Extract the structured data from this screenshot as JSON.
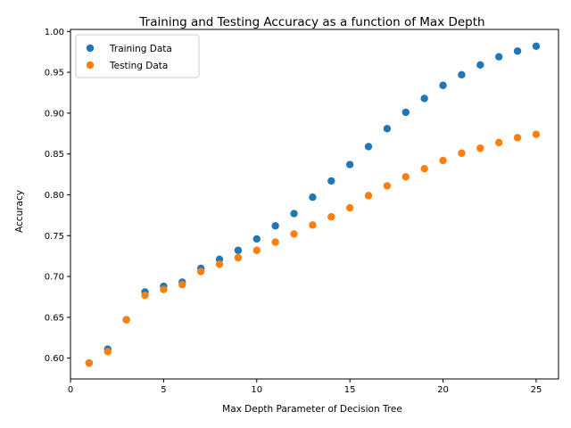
{
  "chart_data": {
    "type": "scatter",
    "title": "Training and Testing Accuracy as a function of Max Depth",
    "xlabel": "Max Depth Parameter of Decision Tree",
    "ylabel": "Accuracy",
    "xlim": [
      0,
      26.2
    ],
    "ylim": [
      0.5745,
      1.0025
    ],
    "xticks": [
      0,
      5,
      10,
      15,
      20,
      25
    ],
    "yticks": [
      0.6,
      0.65,
      0.7,
      0.75,
      0.8,
      0.85,
      0.9,
      0.95,
      1.0
    ],
    "xtick_labels": [
      "0",
      "5",
      "10",
      "15",
      "20",
      "25"
    ],
    "ytick_labels": [
      "0.60",
      "0.65",
      "0.70",
      "0.75",
      "0.80",
      "0.85",
      "0.90",
      "0.95",
      "1.00"
    ],
    "grid": false,
    "legend_position": "top-left",
    "x": [
      1,
      2,
      3,
      4,
      5,
      6,
      7,
      8,
      9,
      10,
      11,
      12,
      13,
      14,
      15,
      16,
      17,
      18,
      19,
      20,
      21,
      22,
      23,
      24,
      25
    ],
    "series": [
      {
        "name": "Training Data",
        "color": "#1f77b4",
        "values": [
          0.594,
          0.611,
          0.647,
          0.681,
          0.688,
          0.693,
          0.71,
          0.721,
          0.732,
          0.746,
          0.762,
          0.777,
          0.797,
          0.817,
          0.837,
          0.859,
          0.881,
          0.901,
          0.918,
          0.934,
          0.947,
          0.959,
          0.969,
          0.976,
          0.982
        ]
      },
      {
        "name": "Testing Data",
        "color": "#ff7f0e",
        "values": [
          0.594,
          0.608,
          0.647,
          0.677,
          0.684,
          0.69,
          0.706,
          0.715,
          0.723,
          0.732,
          0.742,
          0.752,
          0.763,
          0.773,
          0.784,
          0.799,
          0.811,
          0.822,
          0.832,
          0.842,
          0.851,
          0.857,
          0.864,
          0.87,
          0.874
        ]
      }
    ]
  }
}
